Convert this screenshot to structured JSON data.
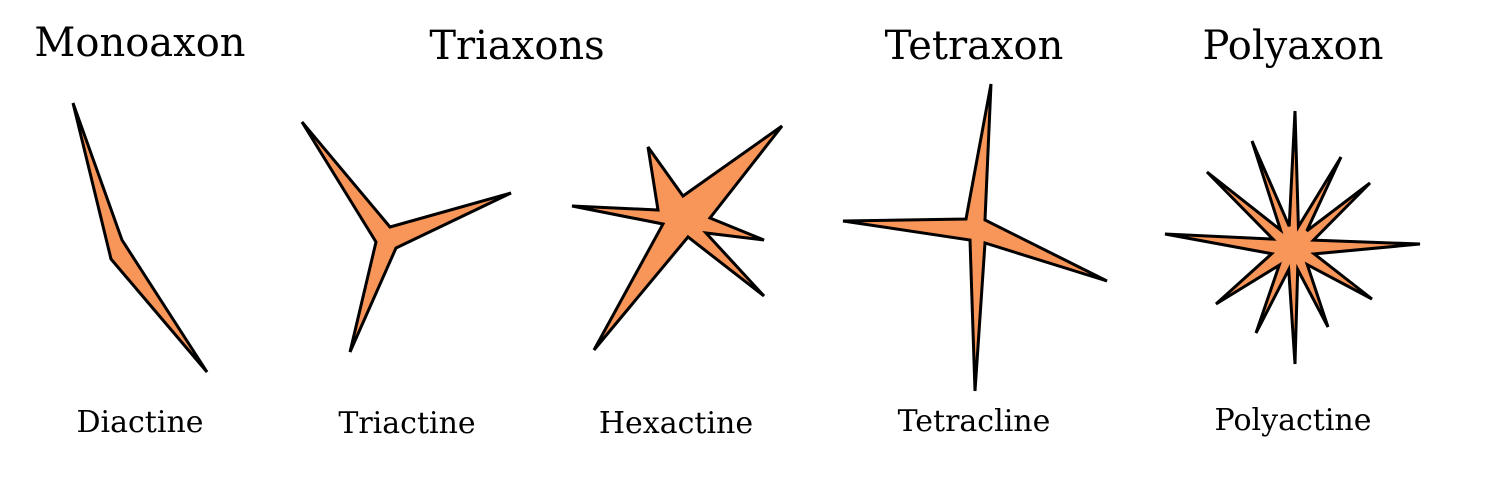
{
  "headings": {
    "monoaxon": "Monoaxon",
    "triaxons": "Triaxons",
    "tetraxon": "Tetraxon",
    "polyaxon": "Polyaxon"
  },
  "captions": {
    "diactine": "Diactine",
    "triactine": "Triactine",
    "hexactine": "Hexactine",
    "tetracline": "Tetracline",
    "polyactine": "Polyactine"
  },
  "colors": {
    "spicule_fill": "#f89558",
    "outline": "#000000",
    "background": "#ffffff"
  }
}
